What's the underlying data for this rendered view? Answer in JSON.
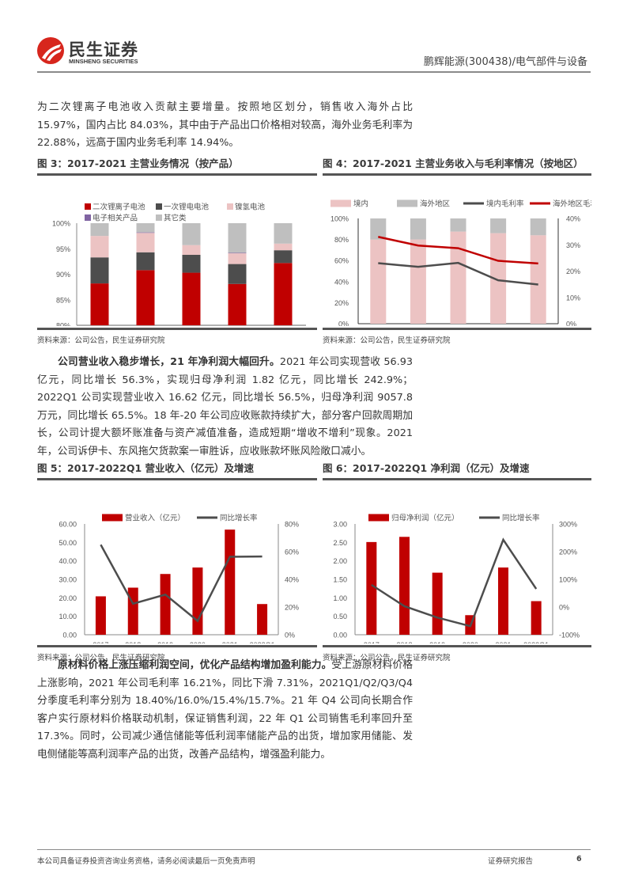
{
  "header": {
    "logo_cn": "民生证券",
    "logo_en": "MINSHENG SECURITIES",
    "report_subject": "鹏辉能源(300438)/电气部件与设备"
  },
  "paragraphs": {
    "p1": "为二次锂离子电池收入贡献主要增量。按照地区划分，销售收入海外占比 15.97%，国内占比 84.03%，其中由于产品出口价格相对较高，海外业务毛利率为 22.88%，远高于国内业务毛利率 14.94%。",
    "p2_bold": "公司营业收入稳步增长，21 年净利润大幅回升。",
    "p2_text": "2021 年公司实现营收 56.93 亿元，同比增长 56.3%，实现归母净利润 1.82 亿元，同比增长 242.9%；2022Q1 公司实现营业收入 16.62 亿元，同比增长 56.5%，归母净利润 9057.8 万元，同比增长 65.5%。18 年-20 年公司应收账款持续扩大，部分客户回款周期加长，公司计提大额坏账准备与资产减值准备，造成短期“增收不增利”现象。2021 年，公司诉伊卡、东风拖欠货款案一审胜诉，应收账款坏账风险敞口减小。",
    "p3_bold": "原材料价格上涨压缩利润空间，优化产品结构增加盈利能力。",
    "p3_text": "受上游原材料价格上涨影响，2021 年公司毛利率 16.21%，同比下滑 7.31%，2021Q1/Q2/Q3/Q4 分季度毛利率分别为 18.40%/16.0%/15.4%/15.7%。21 年 Q4 公司向长期合作客户实行原材料价格联动机制，保证销售利润，22 年 Q1 公司销售毛利率回升至 17.3%。同时，公司减少通信储能等低利润率储能产品的出货，增加家用储能、发电侧储能等高利润率产品的出货，改善产品结构，增强盈利能力。"
  },
  "figures": {
    "fig3": {
      "title": "图 3：2017-2021 主营业务情况（按产品）",
      "source": "资料来源：公司公告，民生证券研究院"
    },
    "fig4": {
      "title": "图 4：2017-2021 主营业务收入与毛利率情况（按地区）",
      "source": "资料来源：公司公告，民生证券研究院"
    },
    "fig5": {
      "title": "图 5：2017-2022Q1 营业收入（亿元）及增速",
      "source": "资料来源：公司公告，民生证券研究院"
    },
    "fig6": {
      "title": "图 6：2017-2022Q1 净利润（亿元）及增速",
      "source": "资料来源：公司公告，民生证券研究院"
    }
  },
  "chart_data": [
    {
      "id": "fig3",
      "type": "bar",
      "stacked": true,
      "title": "2017-2021 主营业务情况（按产品）",
      "categories": [
        "2017",
        "2018",
        "2019",
        "2020",
        "2021"
      ],
      "ylim": [
        0.8,
        1.0
      ],
      "yticks": [
        "80%",
        "85%",
        "90%",
        "95%",
        "100%"
      ],
      "legend_position": "top",
      "series": [
        {
          "name": "二次锂离子电池",
          "color": "#c00000",
          "values": [
            0.882,
            0.908,
            0.903,
            0.881,
            0.922
          ]
        },
        {
          "name": "一次锂电电池",
          "color": "#4d4d4d",
          "values": [
            0.051,
            0.035,
            0.035,
            0.039,
            0.025
          ]
        },
        {
          "name": "镍氢电池",
          "color": "#ecc3c3",
          "values": [
            0.042,
            0.038,
            0.019,
            0.021,
            0.013
          ]
        },
        {
          "name": "电子相关产品",
          "color": "#8064a2",
          "values": [
            0.0,
            0.001,
            0.0,
            0.001,
            0.0
          ]
        },
        {
          "name": "其它类",
          "color": "#bfbfbf",
          "values": [
            0.025,
            0.018,
            0.043,
            0.058,
            0.04
          ]
        }
      ]
    },
    {
      "id": "fig4",
      "type": "bar",
      "stacked": true,
      "title": "2017-2021 主营业务收入与毛利率情况（按地区）",
      "categories": [
        "2017",
        "2018",
        "2019",
        "2020",
        "2021"
      ],
      "ylim": [
        0,
        1
      ],
      "yticks": [
        "0%",
        "20%",
        "40%",
        "60%",
        "80%",
        "100%"
      ],
      "y2lim": [
        0,
        0.4
      ],
      "y2ticks": [
        "0%",
        "10%",
        "20%",
        "30%",
        "40%"
      ],
      "series": [
        {
          "name": "境内",
          "type": "bar",
          "color": "#ecc3c3",
          "values": [
            0.8,
            0.8,
            0.875,
            0.86,
            0.84
          ]
        },
        {
          "name": "海外地区",
          "type": "bar",
          "color": "#bfbfbf",
          "values": [
            0.2,
            0.2,
            0.125,
            0.14,
            0.16
          ]
        },
        {
          "name": "境内毛利率",
          "type": "line",
          "axis": "y2",
          "color": "#4d4d4d",
          "values": [
            0.23,
            0.216,
            0.231,
            0.165,
            0.149
          ]
        },
        {
          "name": "海外地区毛利率",
          "type": "line",
          "axis": "y2",
          "color": "#c00000",
          "values": [
            0.33,
            0.297,
            0.287,
            0.239,
            0.229
          ]
        }
      ]
    },
    {
      "id": "fig5",
      "type": "bar",
      "title": "2017-2022Q1 营业收入（亿元）及增速",
      "categories": [
        "2017",
        "2018",
        "2019",
        "2020",
        "2021",
        "2022Q1"
      ],
      "ylim": [
        0,
        60
      ],
      "yticks": [
        "0.00",
        "10.00",
        "20.00",
        "30.00",
        "40.00",
        "50.00",
        "60.00"
      ],
      "y2lim": [
        0,
        0.8
      ],
      "y2ticks": [
        "0%",
        "20%",
        "40%",
        "60%",
        "80%"
      ],
      "series": [
        {
          "name": "营业收入（亿元）",
          "type": "bar",
          "color": "#c00000",
          "values": [
            20.8,
            25.5,
            32.9,
            36.4,
            56.93,
            16.62
          ]
        },
        {
          "name": "同比增长率",
          "type": "line",
          "axis": "y2",
          "color": "#4d4d4d",
          "values": [
            0.65,
            0.224,
            0.29,
            0.1,
            0.563,
            0.565
          ]
        }
      ]
    },
    {
      "id": "fig6",
      "type": "bar",
      "title": "2017-2022Q1 净利润（亿元）及增速",
      "categories": [
        "2017",
        "2018",
        "2019",
        "2020",
        "2021",
        "2022Q1"
      ],
      "ylim": [
        0,
        3
      ],
      "yticks": [
        "0.00",
        "0.50",
        "1.00",
        "1.50",
        "2.00",
        "2.50",
        "3.00"
      ],
      "y2lim": [
        -1.0,
        3.0
      ],
      "y2ticks": [
        "-100%",
        "0%",
        "100%",
        "200%",
        "300%"
      ],
      "series": [
        {
          "name": "归母净利润（亿元）",
          "type": "bar",
          "color": "#c00000",
          "values": [
            2.51,
            2.65,
            1.68,
            0.53,
            1.82,
            0.91
          ]
        },
        {
          "name": "同比增长率",
          "type": "line",
          "axis": "y2",
          "color": "#4d4d4d",
          "values": [
            0.8,
            0.03,
            -0.38,
            -0.69,
            2.43,
            0.655
          ]
        }
      ]
    }
  ],
  "footer": {
    "disclaimer": "本公司具备证券投资咨询业务资格，请务必阅读最后一页免责声明",
    "report_type": "证券研究报告",
    "page_number": "6"
  }
}
